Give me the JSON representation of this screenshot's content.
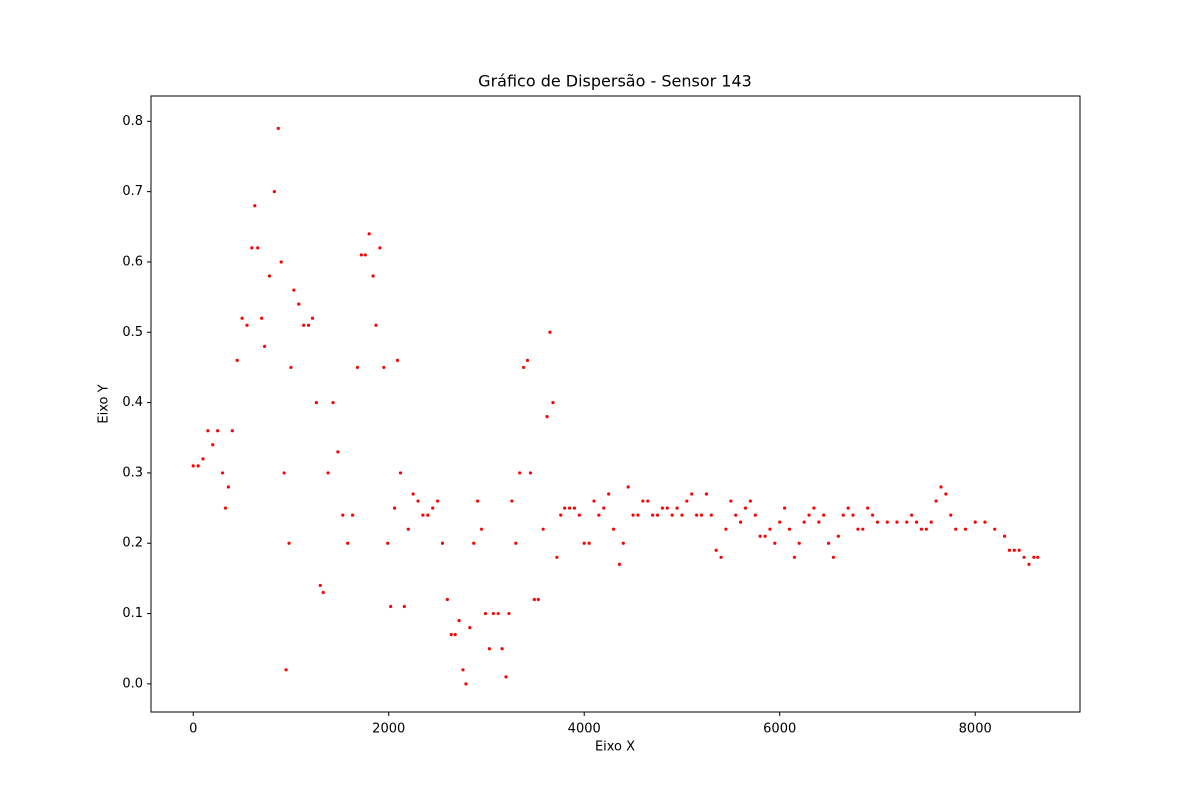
{
  "chart_data": {
    "type": "scatter",
    "title": "Gráfico de Dispersão - Sensor 143",
    "xlabel": "Eixo X",
    "ylabel": "Eixo Y",
    "color": "#ff0000",
    "xlim": [
      -432,
      9072
    ],
    "ylim": [
      -0.04,
      0.836
    ],
    "xticks": [
      0,
      2000,
      4000,
      6000,
      8000
    ],
    "yticks": [
      {
        "value": 0,
        "label": "0.0"
      },
      0.1,
      0.2,
      0.3,
      0.4,
      0.5,
      0.6,
      0.7,
      0.8
    ],
    "x": [
      0,
      50,
      100,
      150,
      200,
      250,
      300,
      330,
      360,
      400,
      450,
      500,
      550,
      600,
      630,
      660,
      700,
      730,
      780,
      830,
      870,
      900,
      930,
      950,
      980,
      1000,
      1030,
      1080,
      1130,
      1180,
      1220,
      1260,
      1300,
      1330,
      1380,
      1430,
      1480,
      1530,
      1580,
      1630,
      1680,
      1720,
      1760,
      1800,
      1840,
      1870,
      1910,
      1950,
      1990,
      2020,
      2060,
      2090,
      2120,
      2160,
      2200,
      2250,
      2300,
      2350,
      2400,
      2450,
      2500,
      2550,
      2600,
      2640,
      2680,
      2720,
      2760,
      2790,
      2830,
      2870,
      2910,
      2950,
      2990,
      3030,
      3070,
      3120,
      3160,
      3200,
      3230,
      3260,
      3300,
      3340,
      3380,
      3420,
      3450,
      3490,
      3530,
      3580,
      3620,
      3650,
      3680,
      3720,
      3760,
      3800,
      3850,
      3900,
      3950,
      4000,
      4050,
      4100,
      4150,
      4200,
      4250,
      4300,
      4360,
      4400,
      4450,
      4500,
      4550,
      4600,
      4650,
      4700,
      4750,
      4800,
      4850,
      4900,
      4950,
      5000,
      5050,
      5100,
      5150,
      5200,
      5250,
      5300,
      5350,
      5400,
      5450,
      5500,
      5550,
      5600,
      5650,
      5700,
      5750,
      5800,
      5850,
      5900,
      5950,
      6000,
      6050,
      6100,
      6150,
      6200,
      6250,
      6300,
      6350,
      6400,
      6450,
      6500,
      6550,
      6600,
      6650,
      6700,
      6750,
      6800,
      6850,
      6900,
      6950,
      7000,
      7100,
      7200,
      7300,
      7350,
      7400,
      7450,
      7500,
      7550,
      7600,
      7650,
      7700,
      7750,
      7800,
      7900,
      8000,
      8100,
      8200,
      8300,
      8350,
      8400,
      8450,
      8500,
      8550,
      8600,
      8640
    ],
    "values": [
      0.31,
      0.31,
      0.32,
      0.36,
      0.34,
      0.36,
      0.3,
      0.25,
      0.28,
      0.36,
      0.46,
      0.52,
      0.51,
      0.62,
      0.68,
      0.62,
      0.52,
      0.48,
      0.58,
      0.7,
      0.79,
      0.6,
      0.3,
      0.02,
      0.2,
      0.45,
      0.56,
      0.54,
      0.51,
      0.51,
      0.52,
      0.4,
      0.14,
      0.13,
      0.3,
      0.4,
      0.33,
      0.24,
      0.2,
      0.24,
      0.45,
      0.61,
      0.61,
      0.64,
      0.58,
      0.51,
      0.62,
      0.45,
      0.2,
      0.11,
      0.25,
      0.46,
      0.3,
      0.11,
      0.22,
      0.27,
      0.26,
      0.24,
      0.24,
      0.25,
      0.26,
      0.2,
      0.12,
      0.07,
      0.07,
      0.09,
      0.02,
      0.0,
      0.08,
      0.2,
      0.26,
      0.22,
      0.1,
      0.05,
      0.1,
      0.1,
      0.05,
      0.01,
      0.1,
      0.26,
      0.2,
      0.3,
      0.45,
      0.46,
      0.3,
      0.12,
      0.12,
      0.22,
      0.38,
      0.5,
      0.4,
      0.18,
      0.24,
      0.25,
      0.25,
      0.25,
      0.24,
      0.2,
      0.2,
      0.26,
      0.24,
      0.25,
      0.27,
      0.22,
      0.17,
      0.2,
      0.28,
      0.24,
      0.24,
      0.26,
      0.26,
      0.24,
      0.24,
      0.25,
      0.25,
      0.24,
      0.25,
      0.24,
      0.26,
      0.27,
      0.24,
      0.24,
      0.27,
      0.24,
      0.19,
      0.18,
      0.22,
      0.26,
      0.24,
      0.23,
      0.25,
      0.26,
      0.24,
      0.21,
      0.21,
      0.22,
      0.2,
      0.23,
      0.25,
      0.22,
      0.18,
      0.2,
      0.23,
      0.24,
      0.25,
      0.23,
      0.24,
      0.2,
      0.18,
      0.21,
      0.24,
      0.25,
      0.24,
      0.22,
      0.22,
      0.25,
      0.24,
      0.23,
      0.23,
      0.23,
      0.23,
      0.24,
      0.23,
      0.22,
      0.22,
      0.23,
      0.26,
      0.28,
      0.27,
      0.24,
      0.22,
      0.22,
      0.23,
      0.23,
      0.22,
      0.21,
      0.19,
      0.19,
      0.19,
      0.18,
      0.17,
      0.18,
      0.18
    ]
  }
}
